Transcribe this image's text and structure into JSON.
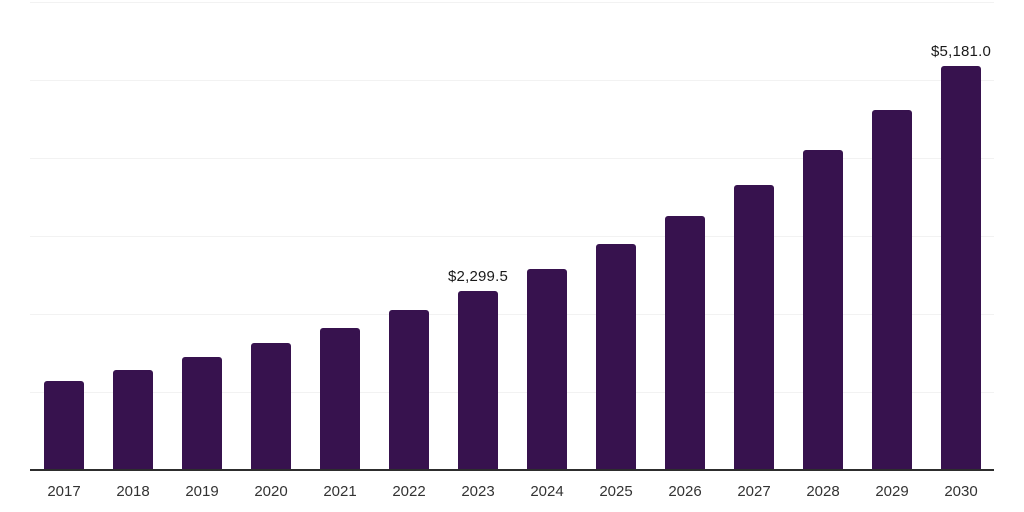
{
  "chart_data": {
    "type": "bar",
    "title": "",
    "xlabel": "",
    "ylabel": "",
    "categories": [
      "2017",
      "2018",
      "2019",
      "2020",
      "2021",
      "2022",
      "2023",
      "2024",
      "2025",
      "2026",
      "2027",
      "2028",
      "2029",
      "2030"
    ],
    "values": [
      1145,
      1286,
      1445,
      1623,
      1823,
      2048,
      2299.5,
      2582,
      2900,
      3258,
      3659,
      4109,
      4615,
      5181
    ],
    "data_labels": {
      "2023": "$2,299.5",
      "2030": "$5,181.0"
    },
    "ylim": [
      0,
      6000
    ],
    "gridline_interval": 1000,
    "grid": "on",
    "legend": "none",
    "colors": {
      "bar": "#37124E",
      "axis_line": "#2d2d2d",
      "gridline": "#f2f2f2",
      "tick_label": "#333333",
      "data_label": "#1a1a1a",
      "background": "#ffffff"
    }
  }
}
